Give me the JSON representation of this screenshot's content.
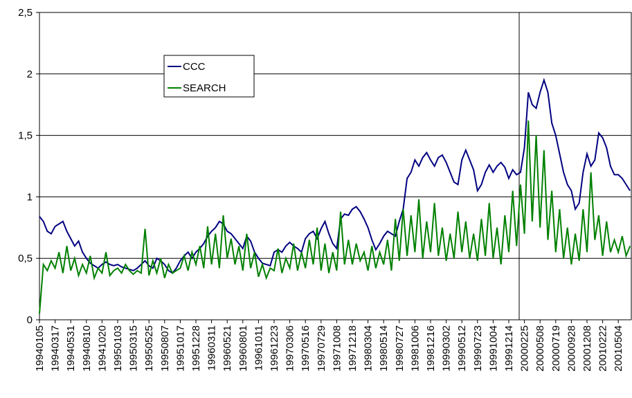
{
  "chart_data": {
    "type": "line",
    "categories": [
      "19940105",
      null,
      null,
      null,
      "19940317",
      null,
      null,
      null,
      "19940531",
      null,
      null,
      null,
      "19940810",
      null,
      null,
      null,
      "19941020",
      null,
      null,
      null,
      "19950103",
      null,
      null,
      null,
      "19950315",
      null,
      null,
      null,
      "19950525",
      null,
      null,
      null,
      "19950807",
      null,
      null,
      null,
      "19951017",
      null,
      null,
      null,
      "19951228",
      null,
      null,
      null,
      "19960311",
      null,
      null,
      null,
      "19960521",
      null,
      null,
      null,
      "19960801",
      null,
      null,
      null,
      "19961011",
      null,
      null,
      null,
      "19961223",
      null,
      null,
      null,
      "19970306",
      null,
      null,
      null,
      "19970516",
      null,
      null,
      null,
      "19970729",
      null,
      null,
      null,
      "19971008",
      null,
      null,
      null,
      "19971218",
      null,
      null,
      null,
      "19980304",
      null,
      null,
      null,
      "19980514",
      null,
      null,
      null,
      "19980727",
      null,
      null,
      null,
      "19981006",
      null,
      null,
      null,
      "19981216",
      null,
      null,
      null,
      "19990302",
      null,
      null,
      null,
      "19990512",
      null,
      null,
      null,
      "19990723",
      null,
      null,
      null,
      "19991004",
      null,
      null,
      null,
      "19991214",
      null,
      null,
      null,
      "20000225",
      null,
      null,
      null,
      "20000508",
      null,
      null,
      null,
      "20000719",
      null,
      null,
      null,
      "20000928",
      null,
      null,
      null,
      "20001208",
      null,
      null,
      null,
      "20010222",
      null,
      null,
      null,
      "20010504",
      null,
      null,
      null
    ],
    "series": [
      {
        "name": "CCC",
        "color": "#000080",
        "values": [
          0.84,
          0.8,
          0.72,
          0.7,
          0.76,
          0.78,
          0.8,
          0.72,
          0.66,
          0.6,
          0.64,
          0.55,
          0.5,
          0.46,
          0.44,
          0.42,
          0.45,
          0.47,
          0.45,
          0.44,
          0.45,
          0.43,
          0.42,
          0.41,
          0.4,
          0.42,
          0.45,
          0.48,
          0.44,
          0.42,
          0.5,
          0.48,
          0.45,
          0.4,
          0.38,
          0.42,
          0.48,
          0.52,
          0.55,
          0.5,
          0.55,
          0.58,
          0.62,
          0.68,
          0.72,
          0.75,
          0.8,
          0.78,
          0.72,
          0.7,
          0.66,
          0.62,
          0.58,
          0.68,
          0.64,
          0.55,
          0.5,
          0.46,
          0.45,
          0.44,
          0.55,
          0.57,
          0.55,
          0.6,
          0.63,
          0.6,
          0.58,
          0.55,
          0.66,
          0.7,
          0.72,
          0.66,
          0.74,
          0.8,
          0.7,
          0.62,
          0.58,
          0.82,
          0.86,
          0.85,
          0.9,
          0.92,
          0.88,
          0.82,
          0.75,
          0.65,
          0.57,
          0.62,
          0.68,
          0.72,
          0.7,
          0.68,
          0.8,
          0.9,
          1.15,
          1.2,
          1.3,
          1.25,
          1.32,
          1.36,
          1.3,
          1.25,
          1.32,
          1.34,
          1.28,
          1.2,
          1.12,
          1.1,
          1.3,
          1.38,
          1.3,
          1.22,
          1.05,
          1.1,
          1.2,
          1.26,
          1.2,
          1.25,
          1.28,
          1.24,
          1.15,
          1.22,
          1.18,
          1.2,
          1.4,
          1.85,
          1.75,
          1.72,
          1.85,
          1.95,
          1.85,
          1.6,
          1.5,
          1.35,
          1.2,
          1.1,
          1.05,
          0.9,
          0.95,
          1.2,
          1.35,
          1.25,
          1.3,
          1.52,
          1.48,
          1.4,
          1.25,
          1.18,
          1.18,
          1.15,
          1.1,
          1.05
        ]
      },
      {
        "name": "SEARCH",
        "color": "#008000",
        "values": [
          0.05,
          0.45,
          0.4,
          0.48,
          0.42,
          0.55,
          0.38,
          0.6,
          0.4,
          0.5,
          0.36,
          0.45,
          0.38,
          0.52,
          0.34,
          0.42,
          0.38,
          0.55,
          0.36,
          0.4,
          0.42,
          0.38,
          0.45,
          0.4,
          0.37,
          0.4,
          0.38,
          0.74,
          0.36,
          0.48,
          0.38,
          0.5,
          0.34,
          0.45,
          0.38,
          0.4,
          0.42,
          0.52,
          0.4,
          0.55,
          0.45,
          0.6,
          0.42,
          0.76,
          0.45,
          0.7,
          0.42,
          0.85,
          0.5,
          0.66,
          0.45,
          0.6,
          0.4,
          0.7,
          0.42,
          0.55,
          0.35,
          0.45,
          0.34,
          0.42,
          0.4,
          0.58,
          0.38,
          0.5,
          0.42,
          0.62,
          0.4,
          0.55,
          0.42,
          0.65,
          0.45,
          0.75,
          0.4,
          0.62,
          0.38,
          0.55,
          0.4,
          0.88,
          0.45,
          0.65,
          0.45,
          0.62,
          0.48,
          0.55,
          0.4,
          0.6,
          0.42,
          0.55,
          0.45,
          0.65,
          0.4,
          0.82,
          0.48,
          0.9,
          0.52,
          0.85,
          0.55,
          0.98,
          0.5,
          0.8,
          0.55,
          0.95,
          0.52,
          0.75,
          0.48,
          0.7,
          0.5,
          0.88,
          0.55,
          0.8,
          0.5,
          0.7,
          0.48,
          0.82,
          0.52,
          0.95,
          0.5,
          0.75,
          0.45,
          0.85,
          0.55,
          1.05,
          0.6,
          1.1,
          0.7,
          1.62,
          0.8,
          1.5,
          0.75,
          1.38,
          0.65,
          1.05,
          0.55,
          0.9,
          0.5,
          0.75,
          0.45,
          0.7,
          0.48,
          0.9,
          0.55,
          1.2,
          0.65,
          0.85,
          0.52,
          0.8,
          0.55,
          0.65,
          0.55,
          0.68,
          0.52,
          0.6
        ]
      }
    ],
    "ylim": [
      0,
      2.5
    ],
    "yticks": [
      0,
      {
        "value": 0.5,
        "label": "0,5"
      },
      1,
      {
        "value": 1.5,
        "label": "1,5"
      },
      2,
      {
        "value": 2.5,
        "label": "2,5"
      }
    ],
    "grid": true
  }
}
